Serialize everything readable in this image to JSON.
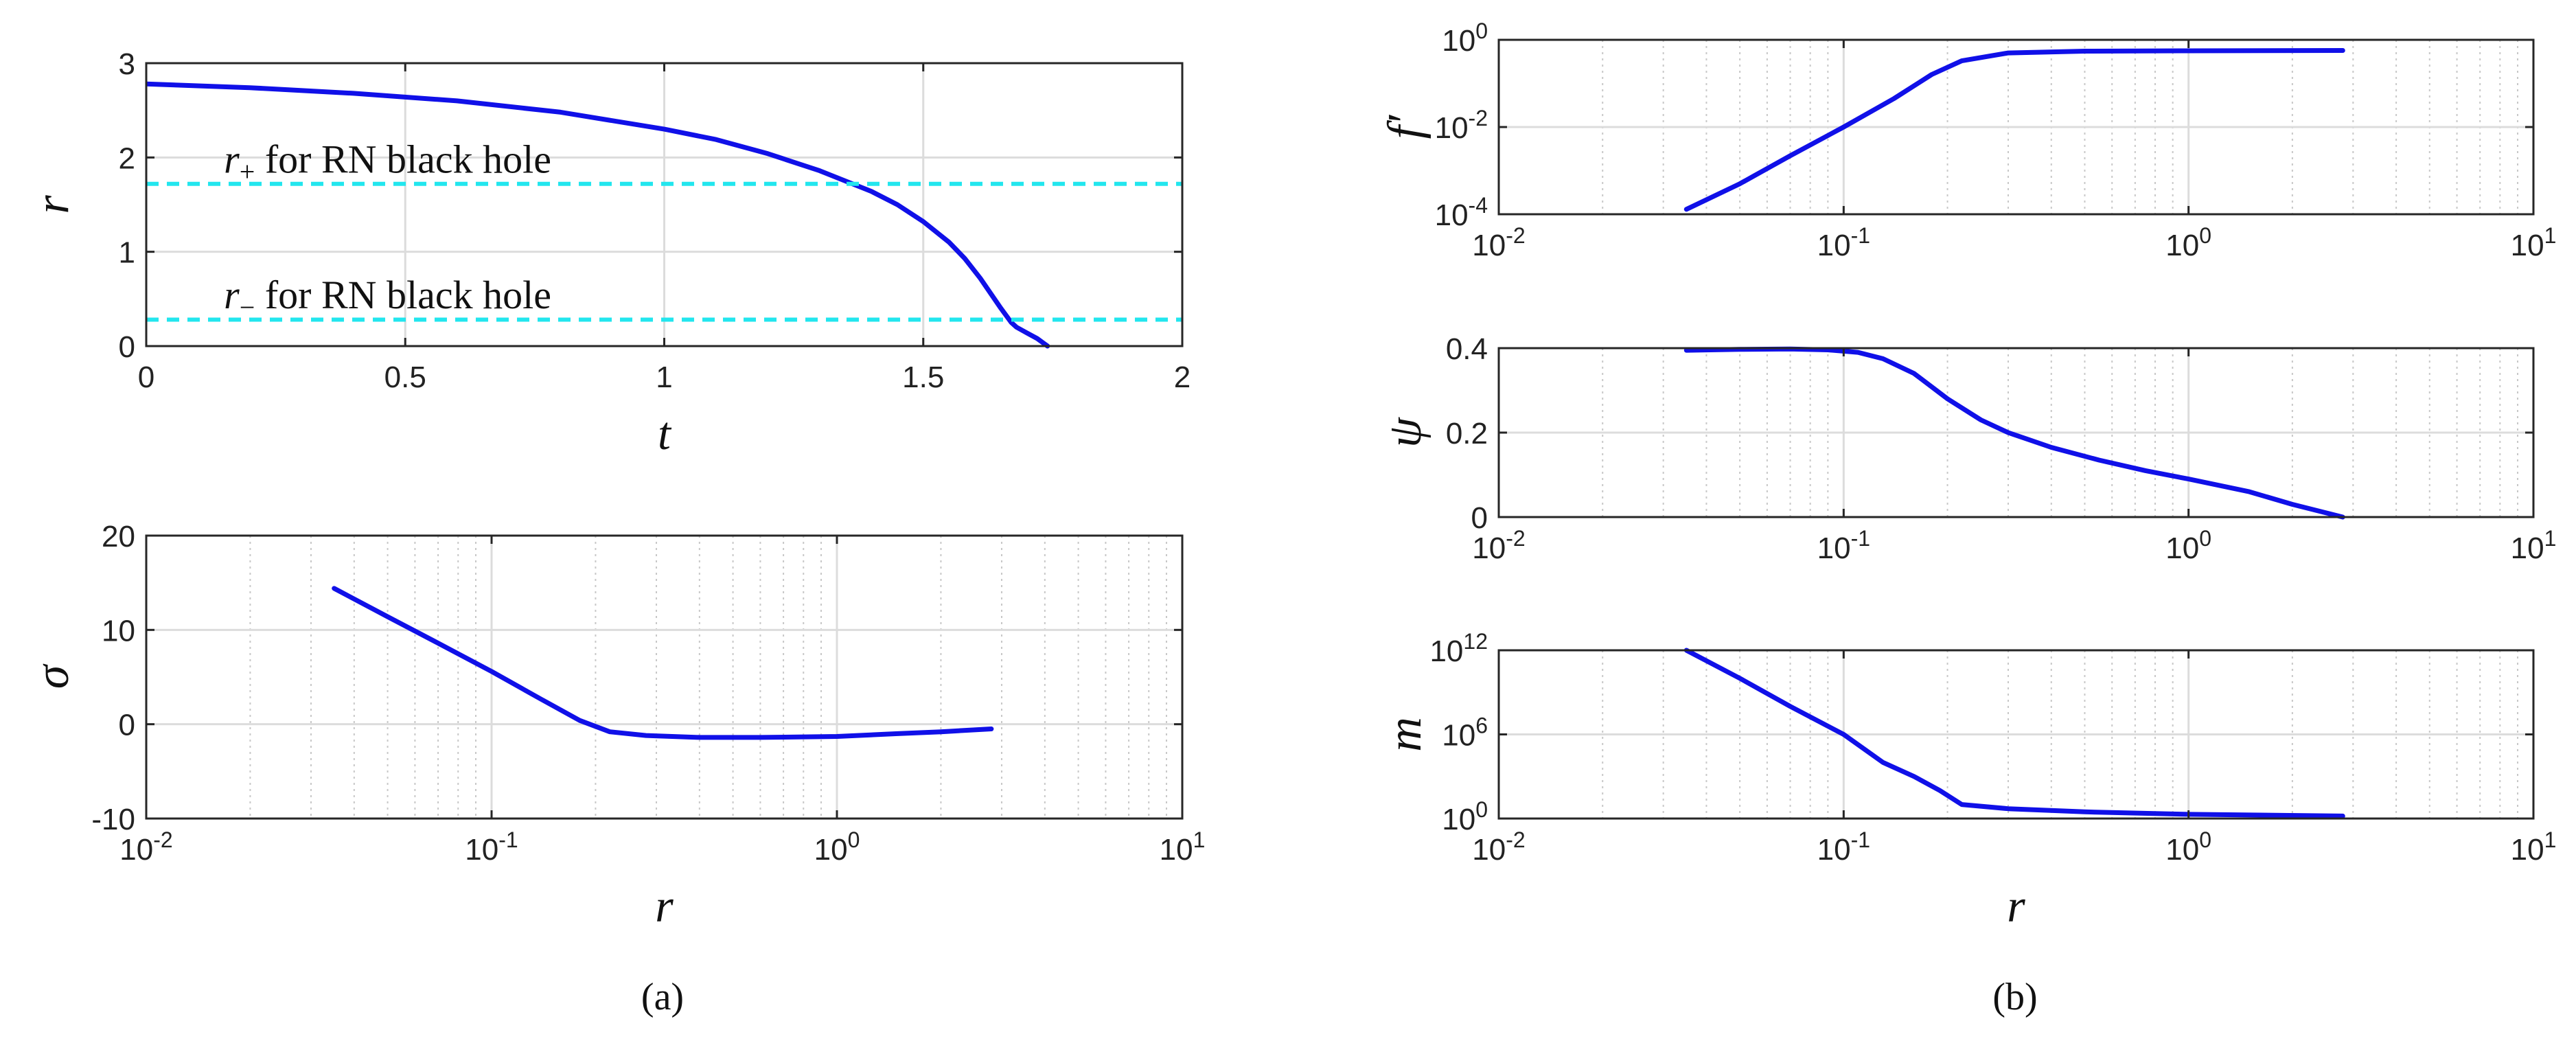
{
  "chart_data": [
    {
      "id": "a_top",
      "type": "line",
      "xscale": "linear",
      "yscale": "linear",
      "xlim": [
        0,
        2
      ],
      "ylim": [
        0,
        3
      ],
      "xticks": [
        0,
        0.5,
        1,
        1.5,
        2
      ],
      "xticklabels": [
        "0",
        "0.5",
        "1",
        "1.5",
        "2"
      ],
      "yticks": [
        0,
        1,
        2,
        3
      ],
      "yticklabels": [
        "0",
        "1",
        "2",
        "3"
      ],
      "xlabel": "t",
      "ylabel": "r",
      "grid": true,
      "series": [
        {
          "x": [
            0,
            0.2,
            0.4,
            0.6,
            0.8,
            1.0,
            1.1,
            1.2,
            1.3,
            1.4,
            1.45,
            1.5,
            1.55,
            1.58,
            1.61,
            1.63,
            1.65,
            1.67,
            1.68,
            1.7,
            1.72,
            1.74
          ],
          "y": [
            2.78,
            2.74,
            2.68,
            2.6,
            2.48,
            2.3,
            2.19,
            2.04,
            1.86,
            1.64,
            1.5,
            1.32,
            1.1,
            0.93,
            0.72,
            0.56,
            0.4,
            0.25,
            0.2,
            0.14,
            0.08,
            0.0
          ],
          "color": "#1010e8",
          "style": "solid"
        },
        {
          "x": [
            0,
            2
          ],
          "y": [
            1.72,
            1.72
          ],
          "color": "#22e6ee",
          "style": "dashed"
        },
        {
          "x": [
            0,
            2
          ],
          "y": [
            0.28,
            0.28
          ],
          "color": "#22e6ee",
          "style": "dashed"
        }
      ],
      "annotations": [
        {
          "sym": "r",
          "sub": "+",
          "text": " for RN black hole",
          "x": 0.15,
          "y": 1.84
        },
        {
          "sym": "r",
          "sub": "−",
          "text": " for RN black hole",
          "x": 0.15,
          "y": 0.4
        }
      ]
    },
    {
      "id": "a_bottom",
      "type": "line",
      "xscale": "log",
      "yscale": "linear",
      "xlim": [
        0.01,
        10
      ],
      "ylim": [
        -10,
        20
      ],
      "xticks": [
        0.01,
        0.1,
        1,
        10
      ],
      "xticklabels": [
        [
          "10",
          "-2"
        ],
        [
          "10",
          "-1"
        ],
        [
          "10",
          "0"
        ],
        [
          "10",
          "1"
        ]
      ],
      "yticks": [
        -10,
        0,
        10,
        20
      ],
      "yticklabels": [
        "-10",
        "0",
        "10",
        "20"
      ],
      "xlabel": "r",
      "ylabel": "σ",
      "grid": true,
      "series": [
        {
          "x": [
            0.035,
            0.05,
            0.07,
            0.1,
            0.14,
            0.18,
            0.22,
            0.28,
            0.4,
            0.6,
            1.0,
            1.5,
            2.0,
            2.8
          ],
          "y": [
            14.4,
            11.4,
            8.6,
            5.6,
            2.6,
            0.4,
            -0.8,
            -1.2,
            -1.4,
            -1.4,
            -1.3,
            -1.0,
            -0.8,
            -0.5
          ],
          "color": "#1010e8",
          "style": "solid"
        }
      ]
    },
    {
      "id": "b_top",
      "type": "line",
      "xscale": "log",
      "yscale": "log",
      "xlim": [
        0.01,
        10
      ],
      "ylim": [
        0.0001,
        1
      ],
      "xticks": [
        0.01,
        0.1,
        1,
        10
      ],
      "xticklabels": [
        [
          "10",
          "-2"
        ],
        [
          "10",
          "-1"
        ],
        [
          "10",
          "0"
        ],
        [
          "10",
          "1"
        ]
      ],
      "yticks": [
        0.0001,
        0.01,
        1
      ],
      "yticklabels": [
        [
          "10",
          "-4"
        ],
        [
          "10",
          "-2"
        ],
        [
          "10",
          "0"
        ]
      ],
      "xlabel": "",
      "ylabel": "f′",
      "grid": true,
      "series": [
        {
          "x": [
            0.035,
            0.05,
            0.07,
            0.1,
            0.14,
            0.18,
            0.22,
            0.3,
            0.5,
            1.0,
            2.8
          ],
          "y": [
            0.00013,
            0.0005,
            0.0022,
            0.01,
            0.045,
            0.16,
            0.33,
            0.5,
            0.55,
            0.56,
            0.57
          ],
          "color": "#1010e8",
          "style": "solid"
        }
      ]
    },
    {
      "id": "b_mid",
      "type": "line",
      "xscale": "log",
      "yscale": "linear",
      "xlim": [
        0.01,
        10
      ],
      "ylim": [
        0,
        0.4
      ],
      "xticks": [
        0.01,
        0.1,
        1,
        10
      ],
      "xticklabels": [
        [
          "10",
          "-2"
        ],
        [
          "10",
          "-1"
        ],
        [
          "10",
          "0"
        ],
        [
          "10",
          "1"
        ]
      ],
      "yticks": [
        0,
        0.2,
        0.4
      ],
      "yticklabels": [
        "0",
        "0.2",
        "0.4"
      ],
      "xlabel": "",
      "ylabel": "ψ",
      "grid": true,
      "series": [
        {
          "x": [
            0.035,
            0.05,
            0.07,
            0.09,
            0.11,
            0.13,
            0.16,
            0.2,
            0.25,
            0.3,
            0.4,
            0.55,
            0.75,
            1.0,
            1.5,
            2.0,
            2.8
          ],
          "y": [
            0.395,
            0.397,
            0.398,
            0.396,
            0.39,
            0.375,
            0.34,
            0.28,
            0.23,
            0.2,
            0.165,
            0.135,
            0.11,
            0.09,
            0.06,
            0.03,
            0.0
          ],
          "color": "#1010e8",
          "style": "solid"
        }
      ]
    },
    {
      "id": "b_bottom",
      "type": "line",
      "xscale": "log",
      "yscale": "log",
      "xlim": [
        0.01,
        10
      ],
      "ylim": [
        1,
        1000000000000.0
      ],
      "xticks": [
        0.01,
        0.1,
        1,
        10
      ],
      "xticklabels": [
        [
          "10",
          "-2"
        ],
        [
          "10",
          "-1"
        ],
        [
          "10",
          "0"
        ],
        [
          "10",
          "1"
        ]
      ],
      "yticks": [
        1,
        1000000.0,
        1000000000000.0
      ],
      "yticklabels": [
        [
          "10",
          "0"
        ],
        [
          "10",
          "6"
        ],
        [
          "10",
          "12"
        ]
      ],
      "xlabel": "r",
      "ylabel": "m",
      "grid": true,
      "series": [
        {
          "x": [
            0.035,
            0.05,
            0.07,
            0.1,
            0.13,
            0.16,
            0.19,
            0.22,
            0.3,
            0.5,
            1.0,
            2.8
          ],
          "y": [
            1000000000000.0,
            10000000000.0,
            100000000.0,
            1000000.0,
            10000.0,
            1000,
            100,
            10,
            5,
            3,
            2,
            1.5
          ],
          "color": "#1010e8",
          "style": "solid"
        }
      ]
    }
  ],
  "captions": {
    "a": "(a)",
    "b": "(b)"
  }
}
